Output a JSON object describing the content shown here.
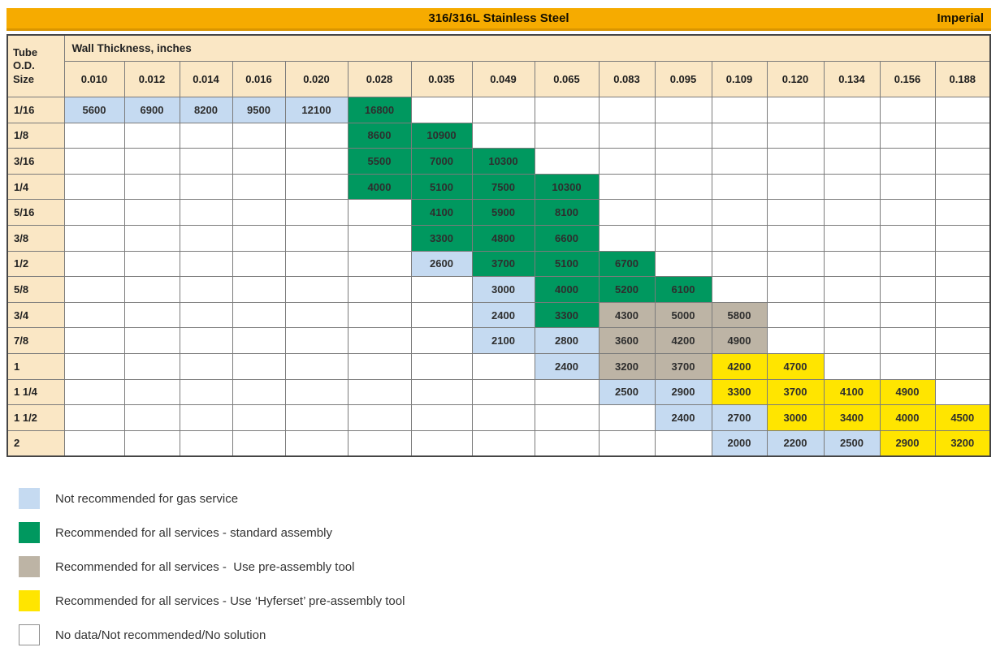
{
  "chart_data": {
    "type": "table",
    "title": "316/316L Stainless Steel",
    "unit_system": "Imperial",
    "row_header": "Tube O.D. Size",
    "row_header_lines": [
      "Tube",
      "O.D.",
      "Size"
    ],
    "col_group_header": "Wall Thickness, inches",
    "columns": [
      "0.010",
      "0.012",
      "0.014",
      "0.016",
      "0.020",
      "0.028",
      "0.035",
      "0.049",
      "0.065",
      "0.083",
      "0.095",
      "0.109",
      "0.120",
      "0.134",
      "0.156",
      "0.188"
    ],
    "status_colors": {
      "ng": "#C5DAF1",
      "std": "#00985F",
      "pre": "#BDB4A5",
      "hyf": "#FFE500",
      "none": "#FFFFFF"
    },
    "rows": [
      {
        "od": "1/16",
        "cells": [
          [
            "5600",
            "ng"
          ],
          [
            "6900",
            "ng"
          ],
          [
            "8200",
            "ng"
          ],
          [
            "9500",
            "ng"
          ],
          [
            "12100",
            "ng"
          ],
          [
            "16800",
            "std"
          ],
          null,
          null,
          null,
          null,
          null,
          null,
          null,
          null,
          null,
          null
        ]
      },
      {
        "od": "1/8",
        "cells": [
          null,
          null,
          null,
          null,
          null,
          [
            "8600",
            "std"
          ],
          [
            "10900",
            "std"
          ],
          null,
          null,
          null,
          null,
          null,
          null,
          null,
          null,
          null
        ]
      },
      {
        "od": "3/16",
        "cells": [
          null,
          null,
          null,
          null,
          null,
          [
            "5500",
            "std"
          ],
          [
            "7000",
            "std"
          ],
          [
            "10300",
            "std"
          ],
          null,
          null,
          null,
          null,
          null,
          null,
          null,
          null
        ]
      },
      {
        "od": "1/4",
        "cells": [
          null,
          null,
          null,
          null,
          null,
          [
            "4000",
            "std"
          ],
          [
            "5100",
            "std"
          ],
          [
            "7500",
            "std"
          ],
          [
            "10300",
            "std"
          ],
          null,
          null,
          null,
          null,
          null,
          null,
          null
        ]
      },
      {
        "od": "5/16",
        "cells": [
          null,
          null,
          null,
          null,
          null,
          null,
          [
            "4100",
            "std"
          ],
          [
            "5900",
            "std"
          ],
          [
            "8100",
            "std"
          ],
          null,
          null,
          null,
          null,
          null,
          null,
          null
        ]
      },
      {
        "od": "3/8",
        "cells": [
          null,
          null,
          null,
          null,
          null,
          null,
          [
            "3300",
            "std"
          ],
          [
            "4800",
            "std"
          ],
          [
            "6600",
            "std"
          ],
          null,
          null,
          null,
          null,
          null,
          null,
          null
        ]
      },
      {
        "od": "1/2",
        "cells": [
          null,
          null,
          null,
          null,
          null,
          null,
          [
            "2600",
            "ng"
          ],
          [
            "3700",
            "std"
          ],
          [
            "5100",
            "std"
          ],
          [
            "6700",
            "std"
          ],
          null,
          null,
          null,
          null,
          null,
          null
        ]
      },
      {
        "od": "5/8",
        "cells": [
          null,
          null,
          null,
          null,
          null,
          null,
          null,
          [
            "3000",
            "ng"
          ],
          [
            "4000",
            "std"
          ],
          [
            "5200",
            "std"
          ],
          [
            "6100",
            "std"
          ],
          null,
          null,
          null,
          null,
          null
        ]
      },
      {
        "od": "3/4",
        "cells": [
          null,
          null,
          null,
          null,
          null,
          null,
          null,
          [
            "2400",
            "ng"
          ],
          [
            "3300",
            "std"
          ],
          [
            "4300",
            "pre"
          ],
          [
            "5000",
            "pre"
          ],
          [
            "5800",
            "pre"
          ],
          null,
          null,
          null,
          null
        ]
      },
      {
        "od": "7/8",
        "cells": [
          null,
          null,
          null,
          null,
          null,
          null,
          null,
          [
            "2100",
            "ng"
          ],
          [
            "2800",
            "ng"
          ],
          [
            "3600",
            "pre"
          ],
          [
            "4200",
            "pre"
          ],
          [
            "4900",
            "pre"
          ],
          null,
          null,
          null,
          null
        ]
      },
      {
        "od": "1",
        "cells": [
          null,
          null,
          null,
          null,
          null,
          null,
          null,
          null,
          [
            "2400",
            "ng"
          ],
          [
            "3200",
            "pre"
          ],
          [
            "3700",
            "pre"
          ],
          [
            "4200",
            "hyf"
          ],
          [
            "4700",
            "hyf"
          ],
          null,
          null,
          null
        ]
      },
      {
        "od": "1 1/4",
        "cells": [
          null,
          null,
          null,
          null,
          null,
          null,
          null,
          null,
          null,
          [
            "2500",
            "ng"
          ],
          [
            "2900",
            "ng"
          ],
          [
            "3300",
            "hyf"
          ],
          [
            "3700",
            "hyf"
          ],
          [
            "4100",
            "hyf"
          ],
          [
            "4900",
            "hyf"
          ],
          null
        ]
      },
      {
        "od": "1 1/2",
        "cells": [
          null,
          null,
          null,
          null,
          null,
          null,
          null,
          null,
          null,
          null,
          [
            "2400",
            "ng"
          ],
          [
            "2700",
            "ng"
          ],
          [
            "3000",
            "hyf"
          ],
          [
            "3400",
            "hyf"
          ],
          [
            "4000",
            "hyf"
          ],
          [
            "4500",
            "hyf"
          ]
        ]
      },
      {
        "od": "2",
        "cells": [
          null,
          null,
          null,
          null,
          null,
          null,
          null,
          null,
          null,
          null,
          null,
          [
            "2000",
            "ng"
          ],
          [
            "2200",
            "ng"
          ],
          [
            "2500",
            "ng"
          ],
          [
            "2900",
            "hyf"
          ],
          [
            "3200",
            "hyf"
          ]
        ]
      }
    ],
    "legend": [
      {
        "status": "ng",
        "label": "Not recommended for gas service"
      },
      {
        "status": "std",
        "label": "Recommended for all services - standard assembly"
      },
      {
        "status": "pre",
        "label": "Recommended for all services -  Use pre-assembly tool"
      },
      {
        "status": "hyf",
        "label": "Recommended for all services - Use ‘Hyferset’ pre-assembly tool"
      },
      {
        "status": "none",
        "label": "No data/Not recommended/No solution"
      }
    ]
  },
  "colors": {
    "title_bar": "#F6AB00",
    "title_bar_edge": "#DA9500",
    "header_cream": "#FAE7C5",
    "grid_line": "#7B7B7B",
    "outer_border": "#454545"
  }
}
